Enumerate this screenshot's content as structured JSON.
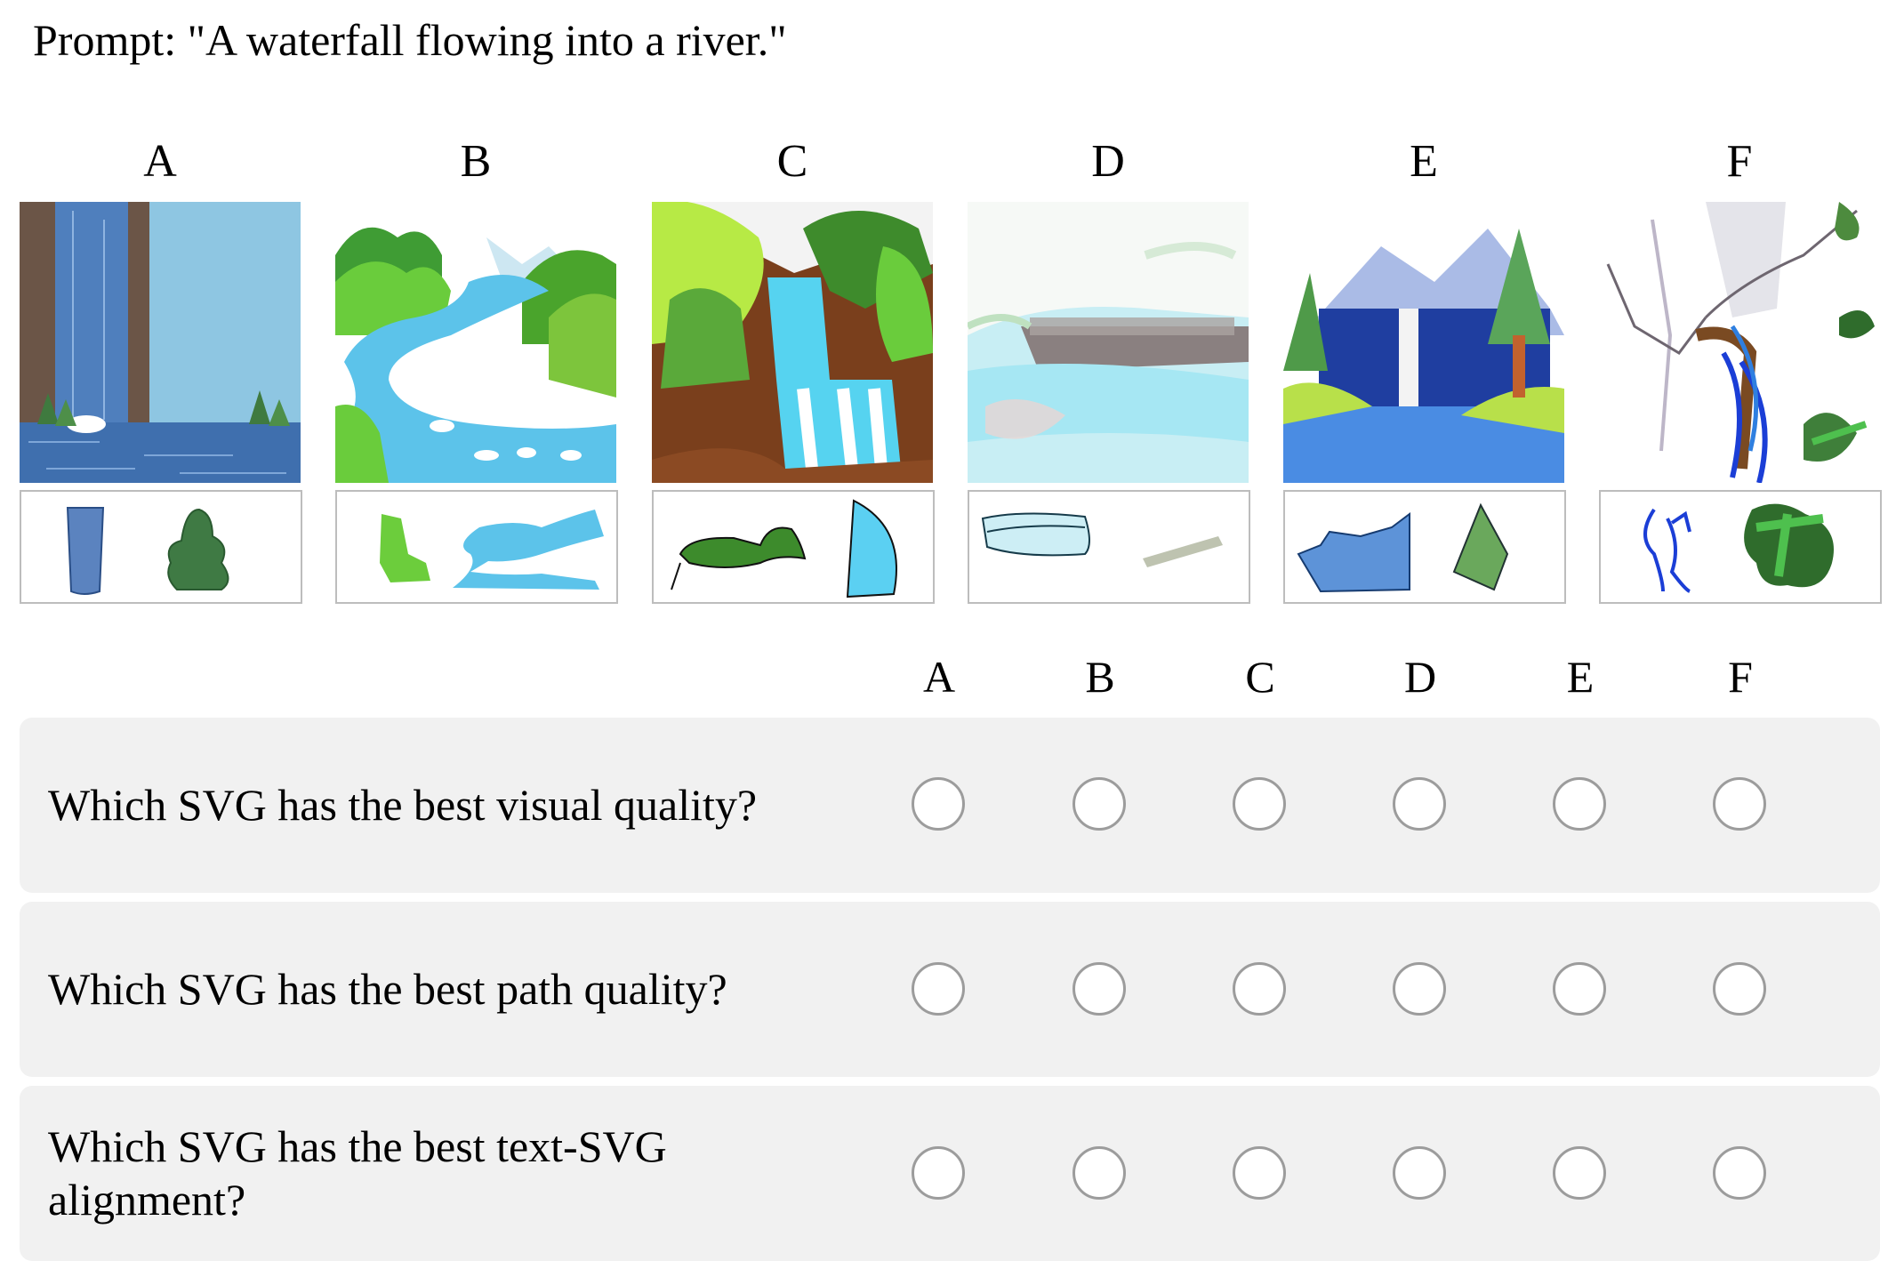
{
  "prompt": "Prompt: \"A waterfall flowing into a river.\"",
  "options": [
    {
      "label": "A",
      "thumb_icon": "waterfall-image",
      "strip_icons": [
        "pillar-icon",
        "tree-icon"
      ]
    },
    {
      "label": "B",
      "thumb_icon": "river-image",
      "strip_icons": [
        "hill-icon",
        "river-icon"
      ]
    },
    {
      "label": "C",
      "thumb_icon": "waterfall-image",
      "strip_icons": [
        "leaf-icon",
        "water-icon"
      ]
    },
    {
      "label": "D",
      "thumb_icon": "cliff-image",
      "strip_icons": [
        "scroll-icon",
        "stick-icon"
      ]
    },
    {
      "label": "E",
      "thumb_icon": "waterfall-image",
      "strip_icons": [
        "water-icon",
        "tree-icon"
      ]
    },
    {
      "label": "F",
      "thumb_icon": "waterfall-image",
      "strip_icons": [
        "squiggle-icon",
        "leaf-icon"
      ]
    }
  ],
  "header_labels": [
    "A",
    "B",
    "C",
    "D",
    "E",
    "F"
  ],
  "questions": [
    {
      "text": "Which SVG has the best visual quality?",
      "selected": null
    },
    {
      "text": "Which SVG has the best path quality?",
      "selected": null
    },
    {
      "text": "Which SVG has the best text-SVG alignment?",
      "selected": null
    }
  ],
  "colors": {
    "panel": "#f1f1f1",
    "radio_border": "#9c9c9c",
    "strip_border": "#bdbdbd"
  }
}
